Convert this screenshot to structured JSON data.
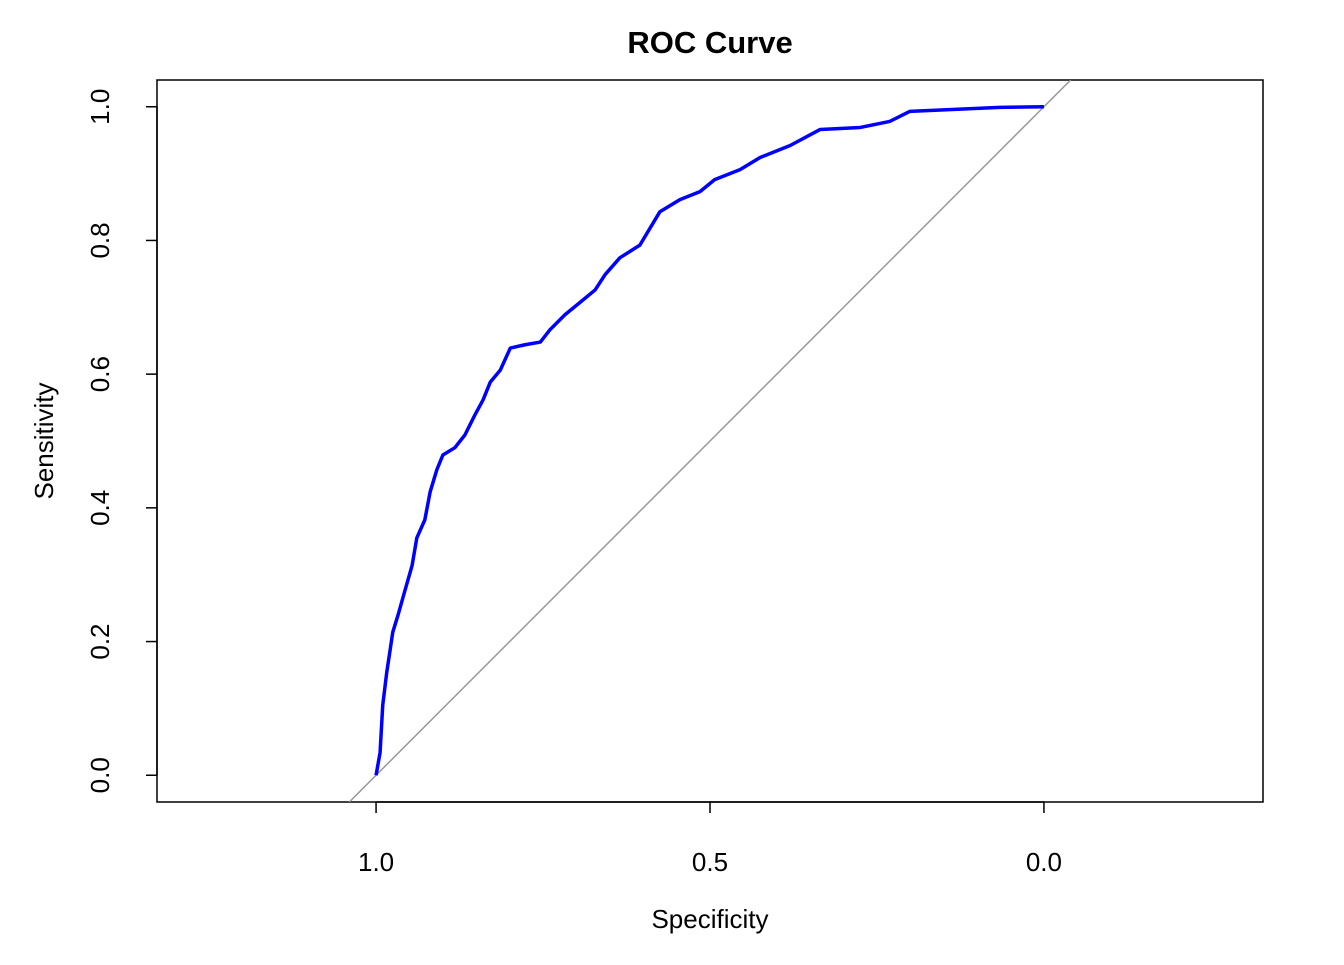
{
  "chart_data": {
    "type": "line",
    "title": "ROC Curve",
    "x_label": "Specificity",
    "y_label": "Sensitivity",
    "x": [
      1,
      0.994,
      0.99,
      0.984,
      0.979,
      0.975,
      0.967,
      0.958,
      0.946,
      0.939,
      0.927,
      0.919,
      0.909,
      0.9,
      0.882,
      0.867,
      0.852,
      0.84,
      0.829,
      0.814,
      0.799,
      0.777,
      0.754,
      0.74,
      0.717,
      0.695,
      0.672,
      0.657,
      0.635,
      0.605,
      0.575,
      0.545,
      0.515,
      0.493,
      0.455,
      0.425,
      0.38,
      0.335,
      0.275,
      0.231,
      0.201,
      0.066,
      0
    ],
    "series": [
      {
        "color": "#0000ff",
        "values": [
          0,
          0.034,
          0.105,
          0.154,
          0.187,
          0.214,
          0.24,
          0.272,
          0.314,
          0.355,
          0.382,
          0.424,
          0.457,
          0.479,
          0.49,
          0.509,
          0.539,
          0.561,
          0.588,
          0.606,
          0.639,
          0.644,
          0.648,
          0.666,
          0.689,
          0.707,
          0.726,
          0.749,
          0.774,
          0.793,
          0.843,
          0.861,
          0.873,
          0.891,
          0.906,
          0.924,
          0.942,
          0.966,
          0.969,
          0.978,
          0.993,
          0.999,
          1
        ]
      }
    ],
    "xlim": [
      1.328,
      -0.328
    ],
    "xticks": [
      {
        "value": 1,
        "label": "1.0"
      },
      0.5,
      {
        "value": 0,
        "label": "0.0"
      }
    ],
    "ylim": [
      -0.04,
      1.04
    ],
    "yticks": [
      {
        "value": 0,
        "label": "0.0"
      },
      0.2,
      0.4,
      0.6,
      0.8,
      {
        "value": 1,
        "label": "1.0"
      }
    ],
    "diagonal_color": "#999999"
  }
}
